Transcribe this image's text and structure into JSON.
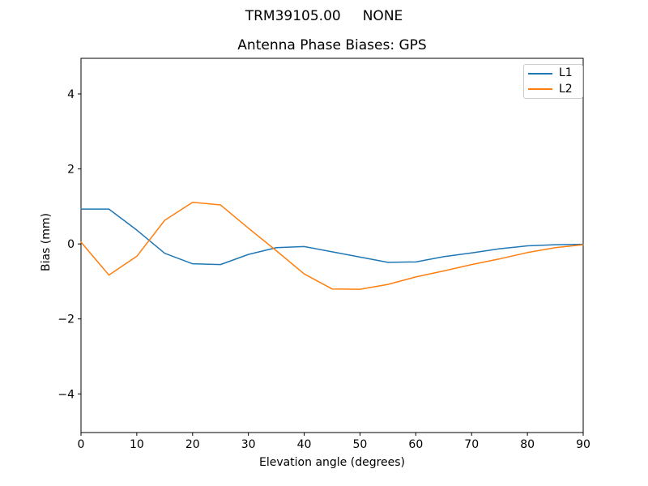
{
  "header": {
    "suptitle": "TRM39105.00     NONE"
  },
  "chart_data": {
    "type": "line",
    "title": "Antenna Phase Biases: GPS",
    "xlabel": "Elevation angle (degrees)",
    "ylabel": "Bias (mm)",
    "xlim": [
      0,
      90
    ],
    "ylim": [
      -5.03,
      4.95
    ],
    "grid": false,
    "legend_position": "upper right",
    "x": [
      0,
      5,
      10,
      15,
      20,
      25,
      30,
      35,
      40,
      45,
      50,
      55,
      60,
      65,
      70,
      75,
      80,
      85,
      90
    ],
    "series": [
      {
        "name": "L1",
        "color": "#1f77b4",
        "values": [
          0.93,
          0.93,
          0.37,
          -0.25,
          -0.53,
          -0.55,
          -0.28,
          -0.1,
          -0.07,
          -0.21,
          -0.35,
          -0.49,
          -0.48,
          -0.34,
          -0.24,
          -0.13,
          -0.05,
          -0.02,
          -0.01
        ]
      },
      {
        "name": "L2",
        "color": "#ff7f0e",
        "values": [
          0.05,
          -0.83,
          -0.33,
          0.63,
          1.11,
          1.04,
          0.42,
          -0.18,
          -0.8,
          -1.2,
          -1.21,
          -1.08,
          -0.88,
          -0.72,
          -0.55,
          -0.4,
          -0.23,
          -0.1,
          -0.02
        ]
      }
    ],
    "xticks": {
      "values": [
        0,
        10,
        20,
        30,
        40,
        50,
        60,
        70,
        80,
        90
      ],
      "labels": [
        "0",
        "10",
        "20",
        "30",
        "40",
        "50",
        "60",
        "70",
        "80",
        "90"
      ]
    },
    "yticks": {
      "values": [
        -4,
        -2,
        0,
        2,
        4
      ],
      "labels": [
        "−4",
        "−2",
        "0",
        "2",
        "4"
      ]
    }
  }
}
